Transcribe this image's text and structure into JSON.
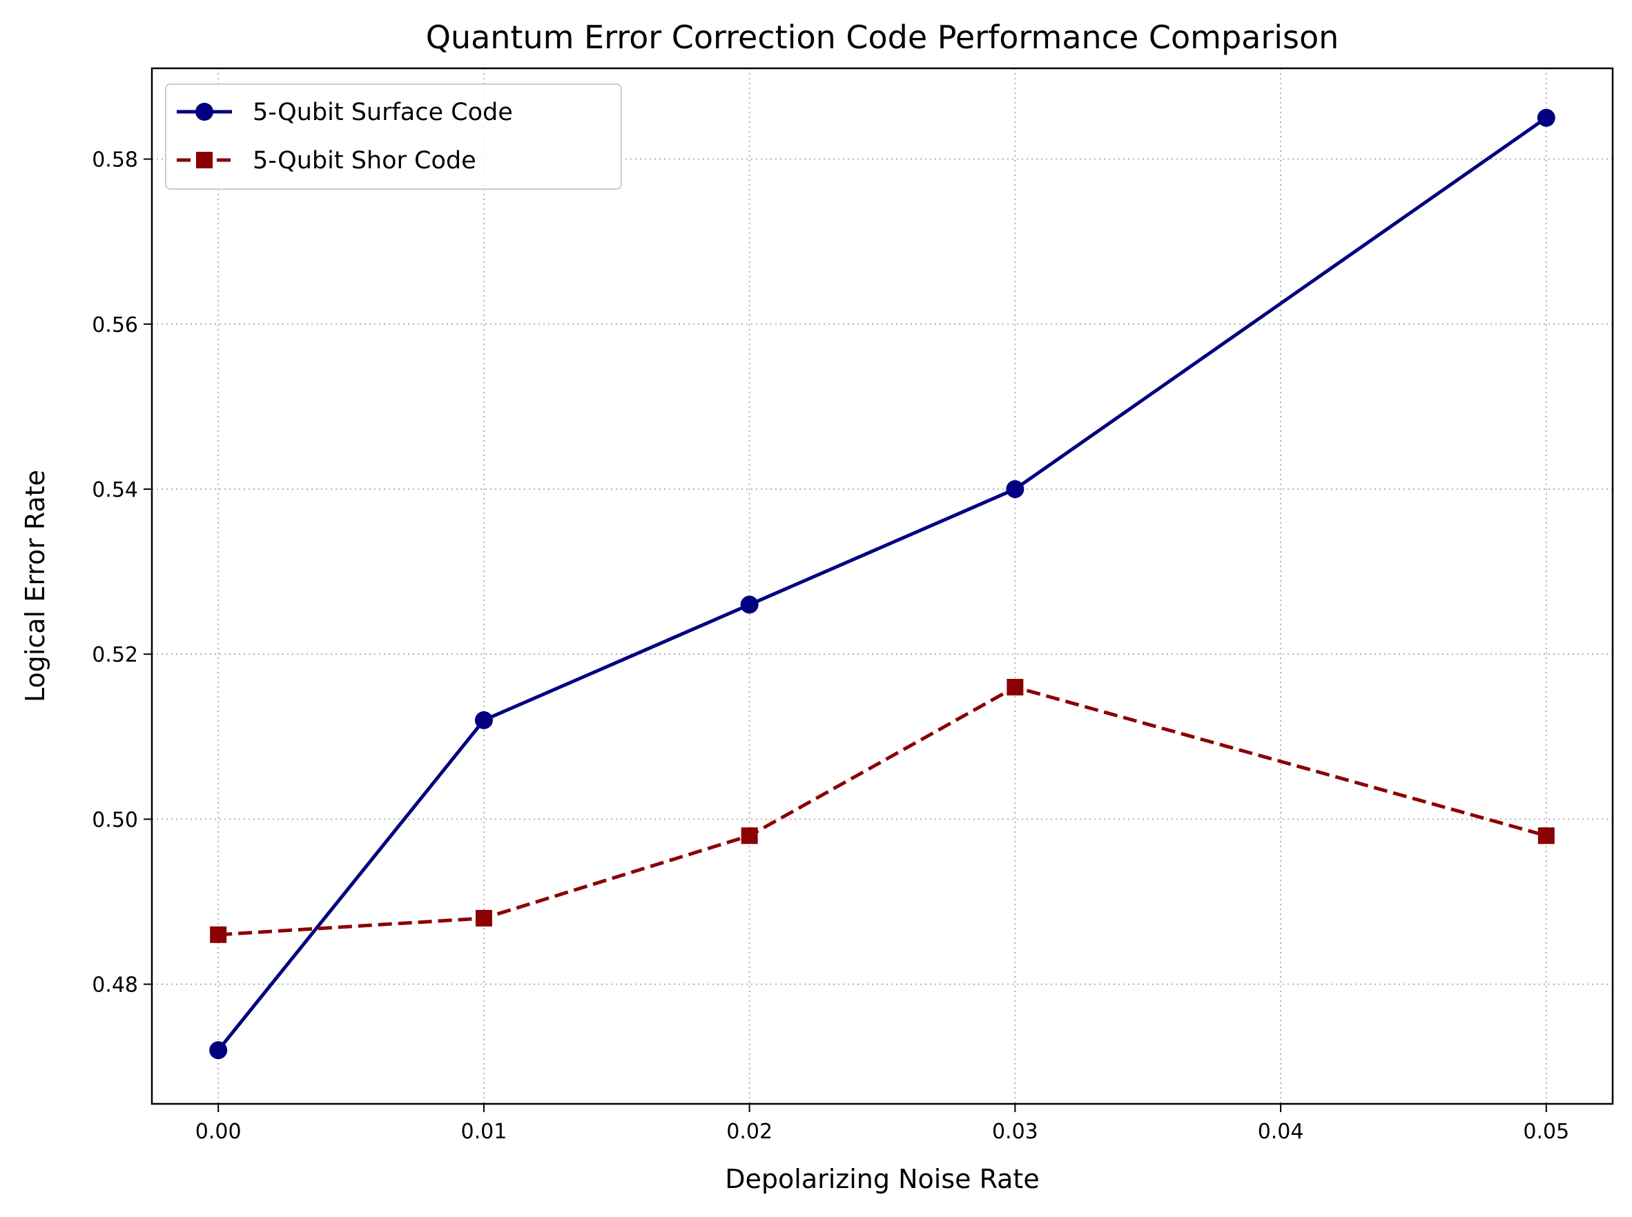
{
  "chart_data": {
    "type": "line",
    "title": "Quantum Error Correction Code Performance Comparison",
    "xlabel": "Depolarizing Noise Rate",
    "ylabel": "Logical Error Rate",
    "xlim": [
      -0.0025,
      0.0525
    ],
    "ylim": [
      0.4655,
      0.591
    ],
    "xticks": [
      "0.00",
      "0.01",
      "0.02",
      "0.03",
      "0.04",
      "0.05"
    ],
    "yticks": [
      "0.48",
      "0.50",
      "0.52",
      "0.54",
      "0.56",
      "0.58"
    ],
    "grid": true,
    "legend_position": "top-left",
    "x": [
      0.0,
      0.01,
      0.02,
      0.03,
      0.05
    ],
    "series": [
      {
        "name": "5-Qubit Surface Code",
        "values": [
          0.472,
          0.512,
          0.526,
          0.54,
          0.585
        ],
        "color": "#000080",
        "line_style": "solid",
        "marker": "circle"
      },
      {
        "name": "5-Qubit Shor Code",
        "values": [
          0.486,
          0.488,
          0.498,
          0.516,
          0.498
        ],
        "color": "#8b0000",
        "line_style": "dashed",
        "marker": "square"
      }
    ]
  }
}
